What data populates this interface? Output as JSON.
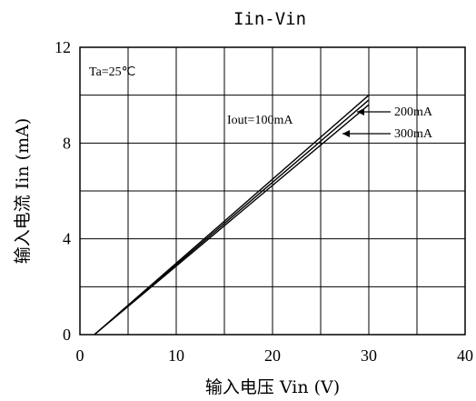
{
  "chart_data": {
    "type": "line",
    "title": "Iin-Vin",
    "xlabel": "输入电压 Vin (V)",
    "ylabel": "输入电流 Iin (mA)",
    "xlim": [
      0,
      40
    ],
    "ylim": [
      0,
      12
    ],
    "x_ticks": [
      "0",
      "10",
      "20",
      "30",
      "40"
    ],
    "y_ticks": [
      "0",
      "4",
      "8",
      "12"
    ],
    "grid": true,
    "annotations": {
      "temperature": "Ta=25℃",
      "iout_100": "Iout=100mA",
      "iout_200": "200mA",
      "iout_300": "300mA"
    },
    "series": [
      {
        "name": "Iout=100mA",
        "x": [
          1.5,
          30
        ],
        "y": [
          0,
          10.0
        ]
      },
      {
        "name": "200mA",
        "x": [
          1.5,
          30
        ],
        "y": [
          0,
          9.8
        ]
      },
      {
        "name": "300mA",
        "x": [
          1.5,
          30
        ],
        "y": [
          0,
          9.6
        ]
      }
    ]
  }
}
